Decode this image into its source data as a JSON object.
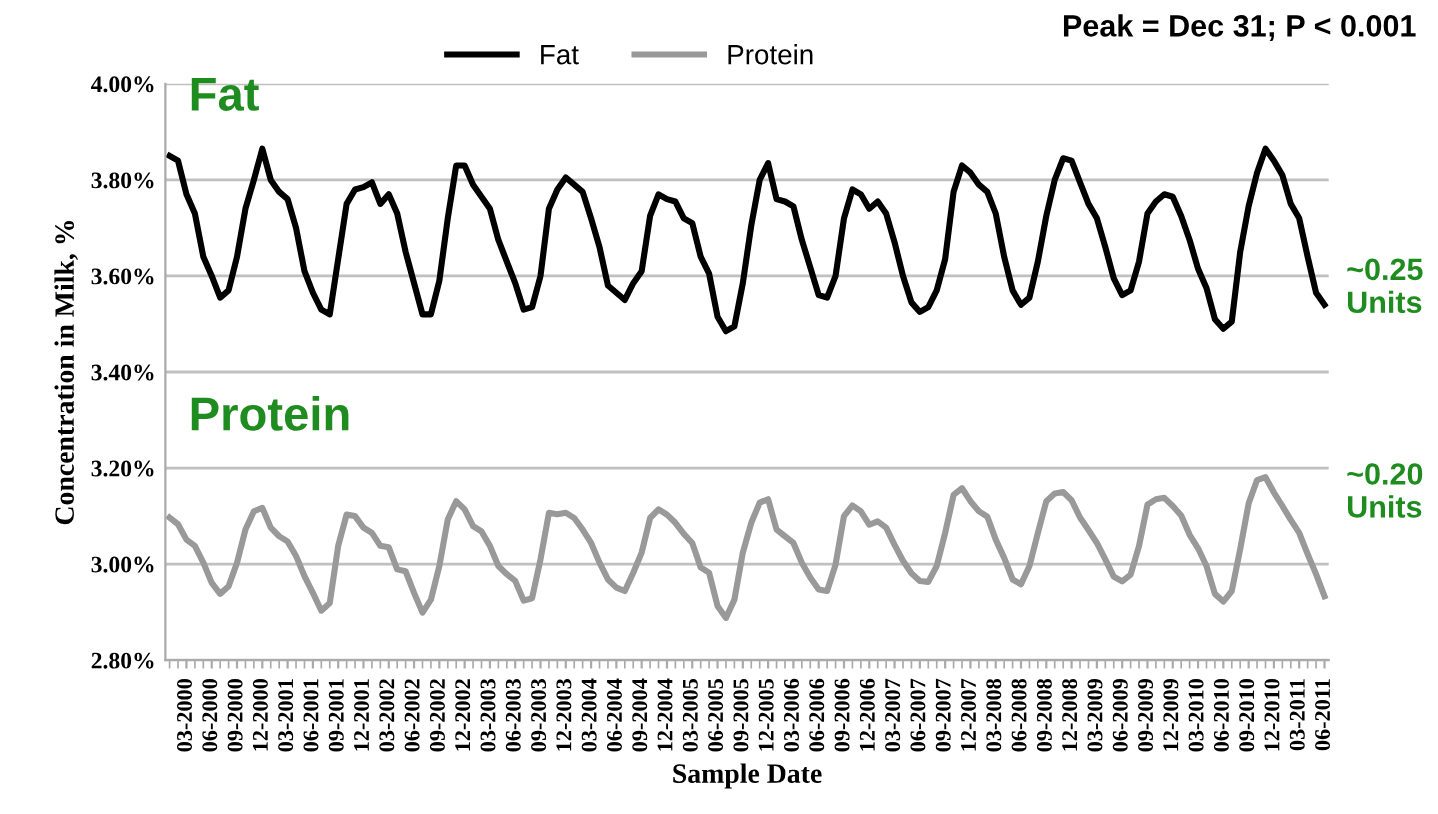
{
  "chart_data": {
    "type": "line",
    "xlabel": "Sample Date",
    "ylabel": "Concentration in Milk, %",
    "categories": [
      null,
      null,
      "03-2000",
      null,
      null,
      "06-2000",
      null,
      null,
      "09-2000",
      null,
      null,
      "12-2000",
      null,
      null,
      "03-2001",
      null,
      null,
      "06-2001",
      null,
      null,
      "09-2001",
      null,
      null,
      "12-2001",
      null,
      null,
      "03-2002",
      null,
      null,
      "06-2002",
      null,
      null,
      "09-2002",
      null,
      null,
      "12-2002",
      null,
      null,
      "03-2003",
      null,
      null,
      "06-2003",
      null,
      null,
      "09-2003",
      null,
      null,
      "12-2003",
      null,
      null,
      "03-2004",
      null,
      null,
      "06-2004",
      null,
      null,
      "09-2004",
      null,
      null,
      "12-2004",
      null,
      null,
      "03-2005",
      null,
      null,
      "06-2005",
      null,
      null,
      "09-2005",
      null,
      null,
      "12-2005",
      null,
      null,
      "03-2006",
      null,
      null,
      "06-2006",
      null,
      null,
      "09-2006",
      null,
      null,
      "12-2006",
      null,
      null,
      "03-2007",
      null,
      null,
      "06-2007",
      null,
      null,
      "09-2007",
      null,
      null,
      "12-2007",
      null,
      null,
      "03-2008",
      null,
      null,
      "06-2008",
      null,
      null,
      "09-2008",
      null,
      null,
      "12-2008",
      null,
      null,
      "03-2009",
      null,
      null,
      "06-2009",
      null,
      null,
      "09-2009",
      null,
      null,
      "12-2009",
      null,
      null,
      "03-2010",
      null,
      null,
      "06-2010",
      null,
      null,
      "09-2010",
      null,
      null,
      "12-2010",
      null,
      null,
      "03-2011",
      null,
      null,
      "06-2011"
    ],
    "series": [
      {
        "name": "Fat",
        "color": "#000000",
        "values": [
          3.85,
          3.84,
          3.77,
          3.73,
          3.64,
          3.6,
          3.555,
          3.57,
          3.64,
          3.74,
          3.8,
          3.865,
          3.8,
          3.775,
          3.76,
          3.7,
          3.61,
          3.565,
          3.53,
          3.52,
          3.635,
          3.75,
          3.78,
          3.785,
          3.795,
          3.75,
          3.77,
          3.73,
          3.65,
          3.585,
          3.52,
          3.52,
          3.59,
          3.72,
          3.83,
          3.83,
          3.79,
          3.765,
          3.74,
          3.675,
          3.63,
          3.585,
          3.53,
          3.535,
          3.6,
          3.74,
          3.78,
          3.805,
          3.79,
          3.775,
          3.72,
          3.66,
          3.58,
          3.565,
          3.55,
          3.585,
          3.61,
          3.725,
          3.77,
          3.76,
          3.755,
          3.72,
          3.71,
          3.64,
          3.605,
          3.515,
          3.485,
          3.495,
          3.585,
          3.705,
          3.8,
          3.835,
          3.76,
          3.755,
          3.745,
          3.675,
          3.618,
          3.56,
          3.555,
          3.6,
          3.72,
          3.78,
          3.77,
          3.74,
          3.755,
          3.73,
          3.67,
          3.6,
          3.545,
          3.525,
          3.535,
          3.57,
          3.635,
          3.775,
          3.83,
          3.815,
          3.79,
          3.775,
          3.73,
          3.64,
          3.57,
          3.54,
          3.555,
          3.63,
          3.725,
          3.8,
          3.845,
          3.84,
          3.795,
          3.75,
          3.72,
          3.66,
          3.595,
          3.56,
          3.57,
          3.63,
          3.73,
          3.755,
          3.77,
          3.765,
          3.725,
          3.675,
          3.615,
          3.575,
          3.51,
          3.49,
          3.505,
          3.65,
          3.745,
          3.815,
          3.865,
          3.84,
          3.81,
          3.75,
          3.72,
          3.64,
          3.565,
          3.54
        ]
      },
      {
        "name": "Protein",
        "color": "#999999",
        "values": [
          3.097,
          3.083,
          3.051,
          3.038,
          3.003,
          2.961,
          2.938,
          2.954,
          3.003,
          3.072,
          3.11,
          3.117,
          3.076,
          3.058,
          3.047,
          3.017,
          2.975,
          2.94,
          2.903,
          2.919,
          3.038,
          3.103,
          3.1,
          3.076,
          3.065,
          3.038,
          3.035,
          2.989,
          2.985,
          2.94,
          2.899,
          2.926,
          2.996,
          3.093,
          3.131,
          3.114,
          3.079,
          3.068,
          3.038,
          2.996,
          2.979,
          2.965,
          2.924,
          2.929,
          3.01,
          3.107,
          3.104,
          3.107,
          3.096,
          3.072,
          3.044,
          3.003,
          2.968,
          2.951,
          2.944,
          2.982,
          3.024,
          3.096,
          3.114,
          3.103,
          3.086,
          3.063,
          3.044,
          2.993,
          2.982,
          2.913,
          2.888,
          2.926,
          3.024,
          3.086,
          3.128,
          3.135,
          3.072,
          3.058,
          3.044,
          3.003,
          2.972,
          2.947,
          2.944,
          2.999,
          3.1,
          3.122,
          3.11,
          3.082,
          3.089,
          3.076,
          3.04,
          3.007,
          2.981,
          2.965,
          2.963,
          2.996,
          3.065,
          3.144,
          3.158,
          3.131,
          3.11,
          3.099,
          3.051,
          3.013,
          2.968,
          2.958,
          2.996,
          3.065,
          3.131,
          3.147,
          3.15,
          3.133,
          3.097,
          3.071,
          3.044,
          3.01,
          2.974,
          2.964,
          2.978,
          3.038,
          3.124,
          3.135,
          3.138,
          3.121,
          3.101,
          3.061,
          3.033,
          2.996,
          2.938,
          2.922,
          2.944,
          3.031,
          3.126,
          3.175,
          3.181,
          3.149,
          3.121,
          3.092,
          3.065,
          3.021,
          2.979,
          2.933
        ]
      }
    ],
    "ylim": [
      2.8,
      4.0
    ],
    "yticks": [
      {
        "value": 2.8,
        "label": "2.80%"
      },
      {
        "value": 3.0,
        "label": "3.00%"
      },
      {
        "value": 3.2,
        "label": "3.20%"
      },
      {
        "value": 3.4,
        "label": "3.40%"
      },
      {
        "value": 3.6,
        "label": "3.60%"
      },
      {
        "value": 3.8,
        "label": "3.80%"
      },
      {
        "value": 4.0,
        "label": "4.00%"
      }
    ],
    "grid": "y",
    "legend": "top",
    "marker": "none",
    "line_style": "solid",
    "annotations": [
      "Peak = Dec 31; P < 0.001",
      "Fat",
      "Protein",
      "~0.25\nUnits",
      "~0.20\nUnits"
    ]
  }
}
